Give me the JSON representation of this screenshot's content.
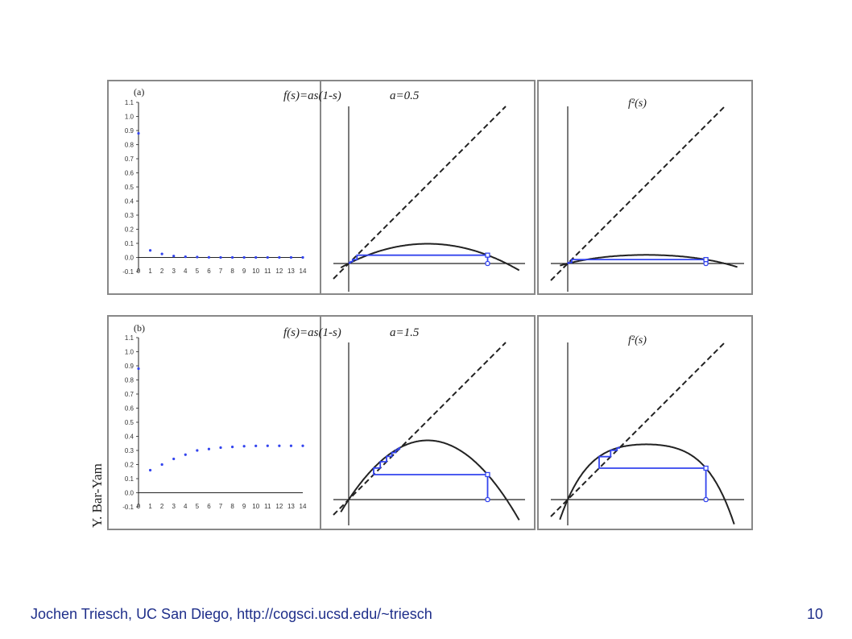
{
  "slide": {
    "footer": "Jochen Triesch, UC San Diego, http://cogsci.ucsd.edu/~triesch",
    "page_number": "10",
    "credit": "Y. Bar-Yam"
  },
  "colors": {
    "trajectory": "#3344ee",
    "curve": "#222222",
    "frame": "#888888"
  },
  "panels": [
    {
      "label": "(a)",
      "equation": "f(s)=as(1-s)",
      "param": "a=0.5",
      "f2_label": "f²(s)"
    },
    {
      "label": "(b)",
      "equation": "f(s)=as(1-s)",
      "param": "a=1.5",
      "f2_label": "f²(s)"
    }
  ],
  "chart_data": [
    {
      "type": "scatter",
      "title": "(a)",
      "x": [
        0,
        1,
        2,
        3,
        4,
        5,
        6,
        7,
        8,
        9,
        10,
        11,
        12,
        13,
        14
      ],
      "x_ticks": [
        "0",
        "1",
        "2",
        "3",
        "4",
        "5",
        "6",
        "7",
        "8",
        "9",
        "10",
        "11",
        "12",
        "13",
        "14"
      ],
      "y_ticks": [
        "1.1",
        "1.0",
        "0.9",
        "0.8",
        "0.7",
        "0.6",
        "0.5",
        "0.4",
        "0.3",
        "0.2",
        "0.1",
        "0.0",
        "-0.1"
      ],
      "ylim": [
        -0.1,
        1.1
      ],
      "series": [
        {
          "values": [
            0.88,
            0.05,
            0.025,
            0.01,
            0.005,
            0.003,
            0.001,
            0,
            0,
            0,
            0,
            0,
            0,
            0,
            0
          ]
        }
      ]
    },
    {
      "type": "line",
      "title": "f(s)=as(1-s)   a=0.5",
      "a": 0.5,
      "start": 0.88,
      "iterations": 6
    },
    {
      "type": "line",
      "title": "f²(s)",
      "a": 0.5,
      "start": 0.88,
      "iterations": 6
    },
    {
      "type": "scatter",
      "title": "(b)",
      "x": [
        0,
        1,
        2,
        3,
        4,
        5,
        6,
        7,
        8,
        9,
        10,
        11,
        12,
        13,
        14
      ],
      "x_ticks": [
        "0",
        "1",
        "2",
        "3",
        "4",
        "5",
        "6",
        "7",
        "8",
        "9",
        "10",
        "11",
        "12",
        "13",
        "14"
      ],
      "y_ticks": [
        "1.1",
        "1.0",
        "0.9",
        "0.8",
        "0.7",
        "0.6",
        "0.5",
        "0.4",
        "0.3",
        "0.2",
        "0.1",
        "0.0",
        "-0.1"
      ],
      "ylim": [
        -0.1,
        1.1
      ],
      "series": [
        {
          "values": [
            0.88,
            0.16,
            0.2,
            0.24,
            0.27,
            0.3,
            0.31,
            0.32,
            0.325,
            0.33,
            0.332,
            0.333,
            0.333,
            0.333,
            0.333
          ]
        }
      ]
    },
    {
      "type": "line",
      "title": "f(s)=as(1-s)   a=1.5",
      "a": 1.5,
      "start": 0.88,
      "iterations": 8
    },
    {
      "type": "line",
      "title": "f²(s)",
      "a": 1.5,
      "start": 0.88,
      "iterations": 5
    }
  ]
}
